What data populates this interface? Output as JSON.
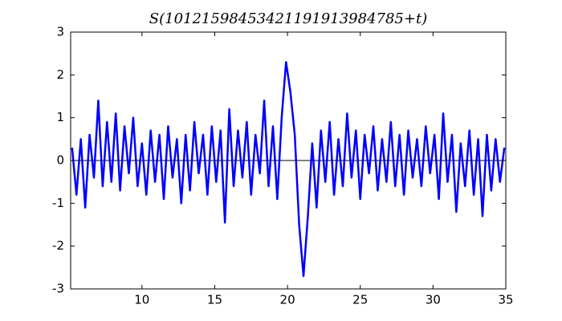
{
  "chart_data": {
    "type": "line",
    "title": "S(10121598453421191913984785+t)",
    "x": [
      5.2,
      5.5,
      5.8,
      6.1,
      6.4,
      6.7,
      7.0,
      7.3,
      7.6,
      7.9,
      8.2,
      8.5,
      8.8,
      9.1,
      9.4,
      9.7,
      10.0,
      10.3,
      10.6,
      10.9,
      11.2,
      11.5,
      11.8,
      12.1,
      12.4,
      12.7,
      13.0,
      13.3,
      13.6,
      13.9,
      14.2,
      14.5,
      14.8,
      15.1,
      15.4,
      15.7,
      16.0,
      16.3,
      16.6,
      16.9,
      17.2,
      17.5,
      17.8,
      18.1,
      18.4,
      18.7,
      19.0,
      19.3,
      19.6,
      19.9,
      20.2,
      20.5,
      20.8,
      21.1,
      21.4,
      21.7,
      22.0,
      22.3,
      22.6,
      22.9,
      23.2,
      23.5,
      23.8,
      24.1,
      24.4,
      24.7,
      25.0,
      25.3,
      25.6,
      25.9,
      26.2,
      26.5,
      26.8,
      27.1,
      27.4,
      27.7,
      28.0,
      28.3,
      28.6,
      28.9,
      29.2,
      29.5,
      29.8,
      30.1,
      30.4,
      30.7,
      31.0,
      31.3,
      31.6,
      31.9,
      32.2,
      32.5,
      32.8,
      33.1,
      33.4,
      33.7,
      34.0,
      34.3,
      34.6,
      34.9
    ],
    "series": [
      {
        "color": "#0000ff",
        "values": [
          0.3,
          -0.8,
          0.5,
          -1.1,
          0.6,
          -0.4,
          1.4,
          -0.6,
          0.9,
          -0.5,
          1.1,
          -0.7,
          0.8,
          -0.3,
          1.0,
          -0.6,
          0.4,
          -0.8,
          0.7,
          -0.5,
          0.6,
          -0.9,
          0.8,
          -0.4,
          0.5,
          -1.0,
          0.6,
          -0.7,
          0.9,
          -0.3,
          0.6,
          -0.8,
          0.8,
          -0.5,
          0.7,
          -1.45,
          1.2,
          -0.6,
          0.7,
          -0.4,
          0.9,
          -0.8,
          0.6,
          -0.3,
          1.4,
          -0.6,
          0.8,
          -0.9,
          1.0,
          2.3,
          1.6,
          0.6,
          -1.5,
          -2.7,
          -1.3,
          0.4,
          -1.1,
          0.7,
          -0.5,
          0.9,
          -0.8,
          0.5,
          -0.6,
          1.1,
          -0.4,
          0.7,
          -0.9,
          0.6,
          -0.3,
          0.8,
          -0.7,
          0.5,
          -0.5,
          0.9,
          -0.6,
          0.6,
          -0.8,
          0.7,
          -0.4,
          0.5,
          -0.6,
          0.8,
          -0.3,
          0.6,
          -0.9,
          1.1,
          -0.5,
          0.6,
          -1.2,
          0.4,
          -0.6,
          0.7,
          -0.8,
          0.5,
          -1.3,
          0.6,
          -0.7,
          0.5,
          -0.5,
          0.3
        ]
      }
    ],
    "hline": 0,
    "xlim": [
      5.1,
      35
    ],
    "xticks": [
      10,
      15,
      20,
      25,
      30,
      35
    ],
    "ylim": [
      -3,
      3
    ],
    "yticks": [
      -3,
      -2,
      -1,
      0,
      1,
      2,
      3
    ]
  }
}
